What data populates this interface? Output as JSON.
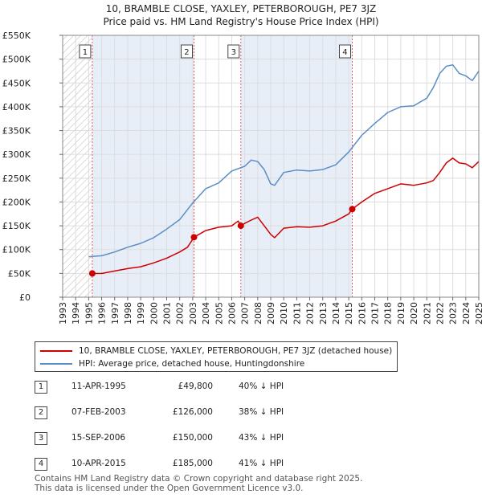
{
  "title": {
    "line1": "10, BRAMBLE CLOSE, YAXLEY, PETERBOROUGH, PE7 3JZ",
    "line2": "Price paid vs. HM Land Registry's House Price Index (HPI)"
  },
  "colors": {
    "property": "#cc0000",
    "hpi": "#5b8ec4",
    "shade": "#e8eef8",
    "marker_line": "#e06060"
  },
  "legend": {
    "property_label": "10, BRAMBLE CLOSE, YAXLEY, PETERBOROUGH, PE7 3JZ (detached house)",
    "hpi_label": "HPI: Average price, detached house, Huntingdonshire"
  },
  "sales": [
    {
      "num": "1",
      "date": "11-APR-1995",
      "price": "£49,800",
      "diff": "40% ↓ HPI"
    },
    {
      "num": "2",
      "date": "07-FEB-2003",
      "price": "£126,000",
      "diff": "38% ↓ HPI"
    },
    {
      "num": "3",
      "date": "15-SEP-2006",
      "price": "£150,000",
      "diff": "43% ↓ HPI"
    },
    {
      "num": "4",
      "date": "10-APR-2015",
      "price": "£185,000",
      "diff": "41% ↓ HPI"
    }
  ],
  "footer": {
    "line1": "Contains HM Land Registry data © Crown copyright and database right 2025.",
    "line2": "This data is licensed under the Open Government Licence v3.0."
  },
  "chart_data": {
    "type": "line",
    "xlim": [
      1993,
      2025
    ],
    "ylim": [
      0,
      550000
    ],
    "y_ticks": [
      0,
      50000,
      100000,
      150000,
      200000,
      250000,
      300000,
      350000,
      400000,
      450000,
      500000,
      550000
    ],
    "y_tick_labels": [
      "£0",
      "£50K",
      "£100K",
      "£150K",
      "£200K",
      "£250K",
      "£300K",
      "£350K",
      "£400K",
      "£450K",
      "£500K",
      "£550K"
    ],
    "x_ticks": [
      1993,
      1994,
      1995,
      1996,
      1997,
      1998,
      1999,
      2000,
      2001,
      2002,
      2003,
      2004,
      2005,
      2006,
      2007,
      2008,
      2009,
      2010,
      2011,
      2012,
      2013,
      2014,
      2015,
      2016,
      2017,
      2018,
      2019,
      2020,
      2021,
      2022,
      2023,
      2024,
      2025
    ],
    "x_tick_labels": [
      "1993",
      "1994",
      "1995",
      "1996",
      "1997",
      "1998",
      "1999",
      "2000",
      "2001",
      "2002",
      "2003",
      "2004",
      "2005",
      "2006",
      "2007",
      "2008",
      "2009",
      "2010",
      "2011",
      "2012",
      "2013",
      "2014",
      "2015",
      "2016",
      "2017",
      "2018",
      "2019",
      "2020",
      "2021",
      "2022",
      "2023",
      "2024",
      "2025"
    ],
    "hatch_region": [
      1993,
      1995.28
    ],
    "shaded_regions": [
      [
        1995.28,
        2003.1
      ],
      [
        2006.7,
        2015.27
      ]
    ],
    "sale_markers": [
      {
        "label": "1",
        "x": 1995.28,
        "y": 49800
      },
      {
        "label": "2",
        "x": 2003.1,
        "y": 126000
      },
      {
        "label": "3",
        "x": 2006.7,
        "y": 150000
      },
      {
        "label": "4",
        "x": 2015.27,
        "y": 185000
      }
    ],
    "series": [
      {
        "name": "10, BRAMBLE CLOSE, YAXLEY, PETERBOROUGH, PE7 3JZ (detached house)",
        "x": [
          1995.28,
          1996,
          1997,
          1998,
          1999,
          2000,
          2001,
          2002,
          2002.6,
          2003.1,
          2004,
          2005,
          2006,
          2006.5,
          2006.7,
          2007,
          2007.5,
          2008,
          2008.5,
          2009,
          2009.3,
          2010,
          2011,
          2012,
          2013,
          2014,
          2015,
          2015.27,
          2016,
          2017,
          2018,
          2019,
          2020,
          2021,
          2021.5,
          2022,
          2022.5,
          2023,
          2023.5,
          2024,
          2024.5,
          2025
        ],
        "y": [
          49800,
          50000,
          55000,
          60000,
          64000,
          72000,
          82000,
          95000,
          105000,
          126000,
          140000,
          147000,
          150000,
          160000,
          150000,
          155000,
          162000,
          168000,
          150000,
          132000,
          125000,
          145000,
          148000,
          147000,
          150000,
          160000,
          175000,
          185000,
          200000,
          218000,
          228000,
          238000,
          235000,
          240000,
          245000,
          262000,
          282000,
          292000,
          282000,
          280000,
          272000,
          285000
        ]
      },
      {
        "name": "HPI: Average price, detached house, Huntingdonshire",
        "x": [
          1995,
          1996,
          1997,
          1998,
          1999,
          2000,
          2001,
          2002,
          2003,
          2004,
          2005,
          2006,
          2007,
          2007.5,
          2008,
          2008.5,
          2009,
          2009.3,
          2010,
          2011,
          2012,
          2013,
          2014,
          2015,
          2016,
          2017,
          2018,
          2019,
          2020,
          2021,
          2021.5,
          2022,
          2022.5,
          2023,
          2023.5,
          2024,
          2024.5,
          2025
        ],
        "y": [
          85000,
          87000,
          95000,
          105000,
          113000,
          125000,
          143000,
          163000,
          198000,
          228000,
          240000,
          265000,
          275000,
          288000,
          285000,
          268000,
          238000,
          235000,
          262000,
          267000,
          265000,
          268000,
          278000,
          305000,
          340000,
          365000,
          388000,
          400000,
          402000,
          418000,
          440000,
          470000,
          485000,
          488000,
          470000,
          465000,
          455000,
          475000
        ]
      }
    ]
  }
}
